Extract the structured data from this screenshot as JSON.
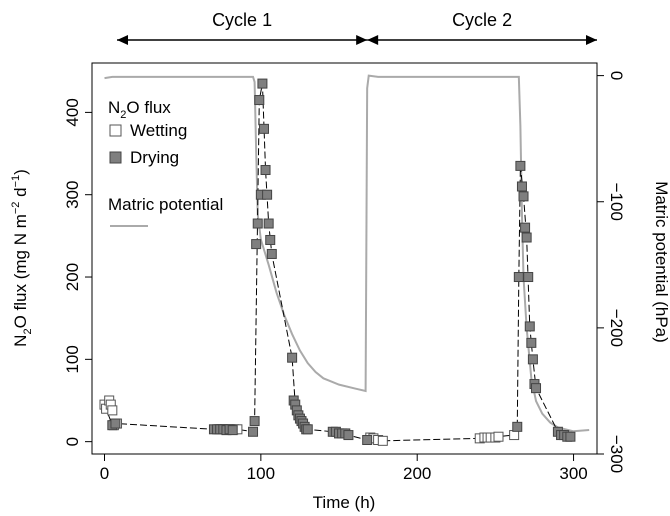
{
  "cycles": [
    {
      "label": "Cycle 1",
      "start": 8,
      "end": 168
    },
    {
      "label": "Cycle 2",
      "start": 168,
      "end": 315
    }
  ],
  "legend": {
    "title_main": "N",
    "title_sub": "2",
    "title_rest": "O flux",
    "wetting": "Wetting",
    "drying": "Drying",
    "matric": "Matric potential"
  },
  "axes": {
    "xlabel": "Time (h)",
    "ylabel_left": {
      "p1": "N",
      "s1": "2",
      "p2": "O flux (mg N m",
      "s2": "−2",
      "p3": " d",
      "s3": "−1",
      "p4": ")"
    },
    "ylabel_right": "Matric potential (hPa)"
  },
  "chart_data": {
    "type": "scatter",
    "xlim": [
      -8,
      315
    ],
    "ylim_left": [
      -15,
      460
    ],
    "ylim_right": [
      -300,
      10
    ],
    "x_ticks": [
      0,
      100,
      200,
      300
    ],
    "y_left_ticks": [
      0,
      100,
      200,
      300,
      400
    ],
    "y_right_ticks": [
      0,
      -100,
      -200,
      -300
    ],
    "colors": {
      "drying_fill": "#7f7f7f",
      "wetting_fill": "#ffffff",
      "matric_line": "#aaaaaa",
      "flux_line": "#000000"
    },
    "series": [
      {
        "name": "Wetting",
        "marker": "open-square",
        "points": [
          [
            0,
            45
          ],
          [
            1,
            40
          ],
          [
            3,
            50
          ],
          [
            4,
            45
          ],
          [
            5,
            38
          ],
          [
            6,
            20
          ],
          [
            8,
            22
          ],
          [
            73,
            15
          ],
          [
            75,
            15
          ],
          [
            77,
            15
          ],
          [
            79,
            15
          ],
          [
            81,
            15
          ],
          [
            83,
            15
          ],
          [
            85,
            15
          ],
          [
            170,
            5
          ],
          [
            172,
            4
          ],
          [
            175,
            2
          ],
          [
            178,
            1
          ],
          [
            240,
            4
          ],
          [
            243,
            5
          ],
          [
            245,
            5
          ],
          [
            247,
            5
          ],
          [
            250,
            5
          ],
          [
            252,
            6
          ],
          [
            262,
            8
          ]
        ]
      },
      {
        "name": "Drying",
        "marker": "filled-square",
        "points": [
          [
            5,
            20
          ],
          [
            7,
            22
          ],
          [
            70,
            15
          ],
          [
            72,
            15
          ],
          [
            74,
            15
          ],
          [
            76,
            15
          ],
          [
            78,
            14
          ],
          [
            80,
            15
          ],
          [
            82,
            14
          ],
          [
            95,
            12
          ],
          [
            96,
            25
          ],
          [
            97,
            240
          ],
          [
            98,
            265
          ],
          [
            99,
            415
          ],
          [
            100,
            300
          ],
          [
            101,
            435
          ],
          [
            102,
            380
          ],
          [
            103,
            330
          ],
          [
            104,
            300
          ],
          [
            105,
            265
          ],
          [
            106,
            245
          ],
          [
            107,
            228
          ],
          [
            120,
            102
          ],
          [
            121,
            50
          ],
          [
            122,
            45
          ],
          [
            123,
            38
          ],
          [
            124,
            32
          ],
          [
            125,
            28
          ],
          [
            126,
            25
          ],
          [
            127,
            22
          ],
          [
            128,
            18
          ],
          [
            129,
            15
          ],
          [
            130,
            15
          ],
          [
            146,
            12
          ],
          [
            148,
            12
          ],
          [
            150,
            10
          ],
          [
            152,
            10
          ],
          [
            154,
            10
          ],
          [
            156,
            8
          ],
          [
            168,
            2
          ],
          [
            264,
            18
          ],
          [
            265,
            200
          ],
          [
            266,
            335
          ],
          [
            267,
            310
          ],
          [
            268,
            298
          ],
          [
            269,
            260
          ],
          [
            270,
            248
          ],
          [
            271,
            200
          ],
          [
            272,
            140
          ],
          [
            273,
            120
          ],
          [
            274,
            100
          ],
          [
            275,
            70
          ],
          [
            276,
            65
          ],
          [
            290,
            12
          ],
          [
            292,
            8
          ],
          [
            294,
            8
          ],
          [
            296,
            6
          ],
          [
            298,
            6
          ]
        ]
      }
    ],
    "flux_line": [
      [
        0,
        45
      ],
      [
        5,
        20
      ],
      [
        8,
        22
      ],
      [
        70,
        15
      ],
      [
        85,
        15
      ],
      [
        95,
        12
      ],
      [
        96,
        25
      ],
      [
        99,
        415
      ],
      [
        101,
        435
      ],
      [
        103,
        330
      ],
      [
        105,
        265
      ],
      [
        107,
        228
      ],
      [
        120,
        102
      ],
      [
        122,
        45
      ],
      [
        126,
        25
      ],
      [
        130,
        15
      ],
      [
        146,
        12
      ],
      [
        156,
        8
      ],
      [
        168,
        2
      ],
      [
        178,
        1
      ],
      [
        240,
        4
      ],
      [
        262,
        8
      ],
      [
        264,
        18
      ],
      [
        265,
        200
      ],
      [
        266,
        335
      ],
      [
        268,
        298
      ],
      [
        270,
        248
      ],
      [
        272,
        140
      ],
      [
        274,
        100
      ],
      [
        276,
        65
      ],
      [
        290,
        12
      ],
      [
        298,
        6
      ]
    ],
    "matric_potential": [
      [
        0,
        -2
      ],
      [
        5,
        -1
      ],
      [
        95,
        -1
      ],
      [
        96,
        -5
      ],
      [
        97,
        -60
      ],
      [
        98,
        -110
      ],
      [
        100,
        -130
      ],
      [
        105,
        -150
      ],
      [
        110,
        -172
      ],
      [
        115,
        -190
      ],
      [
        120,
        -205
      ],
      [
        125,
        -218
      ],
      [
        130,
        -228
      ],
      [
        135,
        -235
      ],
      [
        140,
        -240
      ],
      [
        150,
        -245
      ],
      [
        160,
        -248
      ],
      [
        167,
        -250
      ],
      [
        168,
        -10
      ],
      [
        169,
        0
      ],
      [
        175,
        -1
      ],
      [
        265,
        -1
      ],
      [
        266,
        -40
      ],
      [
        267,
        -110
      ],
      [
        268,
        -160
      ],
      [
        270,
        -200
      ],
      [
        273,
        -240
      ],
      [
        276,
        -258
      ],
      [
        280,
        -268
      ],
      [
        285,
        -275
      ],
      [
        290,
        -279
      ],
      [
        300,
        -282
      ],
      [
        310,
        -281
      ]
    ]
  }
}
